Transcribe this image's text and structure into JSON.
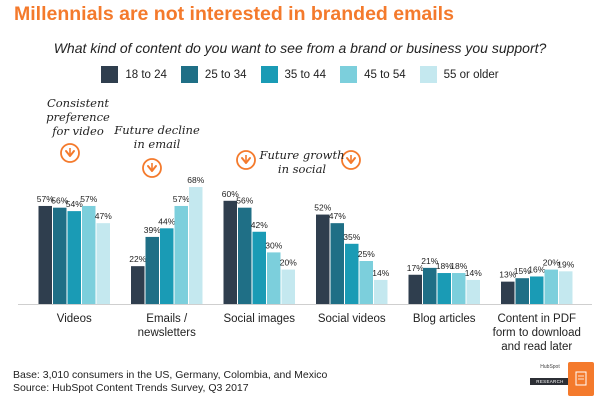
{
  "headline": "Millennials are not interested in branded emails",
  "footer": {
    "base": "Base: 3,010 consumers in the US, Germany, Colombia, and Mexico",
    "source": "Source: HubSpot Content Trends Survey, Q3 2017"
  },
  "annotations": [
    {
      "id": "consistent",
      "lines": [
        "Consistent",
        "preference",
        "for video"
      ]
    },
    {
      "id": "future-decline",
      "lines": [
        "Future decline",
        "in email"
      ]
    },
    {
      "id": "future-growth",
      "lines": [
        "Future growth",
        "in social"
      ]
    }
  ],
  "logo": {
    "brand": "HubSpot",
    "tag": "RESEARCH"
  },
  "chart_data": {
    "type": "bar",
    "title": "What kind of content do you want to see from a brand or business you support?",
    "categories": [
      [
        "Videos"
      ],
      [
        "Emails /",
        "newsletters"
      ],
      [
        "Social images"
      ],
      [
        "Social videos"
      ],
      [
        "Blog articles"
      ],
      [
        "Content in PDF",
        "form to download",
        "and read later"
      ]
    ],
    "series": [
      {
        "name": "18 to 24",
        "color": "#2f3e4e",
        "values": [
          57,
          22,
          60,
          52,
          17,
          13
        ]
      },
      {
        "name": "25 to 34",
        "color": "#1f6f86",
        "values": [
          56,
          39,
          56,
          47,
          21,
          15
        ]
      },
      {
        "name": "35 to 44",
        "color": "#1a9bb5",
        "values": [
          54,
          44,
          42,
          35,
          18,
          16
        ]
      },
      {
        "name": "45 to 54",
        "color": "#7ccfdc",
        "values": [
          57,
          57,
          30,
          25,
          18,
          20
        ]
      },
      {
        "name": "55 or older",
        "color": "#c4e8ef",
        "values": [
          47,
          68,
          20,
          14,
          14,
          19
        ]
      }
    ],
    "value_suffix": "%",
    "ylim": [
      0,
      70
    ],
    "xlabel": "",
    "ylabel": "",
    "grid": false,
    "legend": "top-center"
  }
}
